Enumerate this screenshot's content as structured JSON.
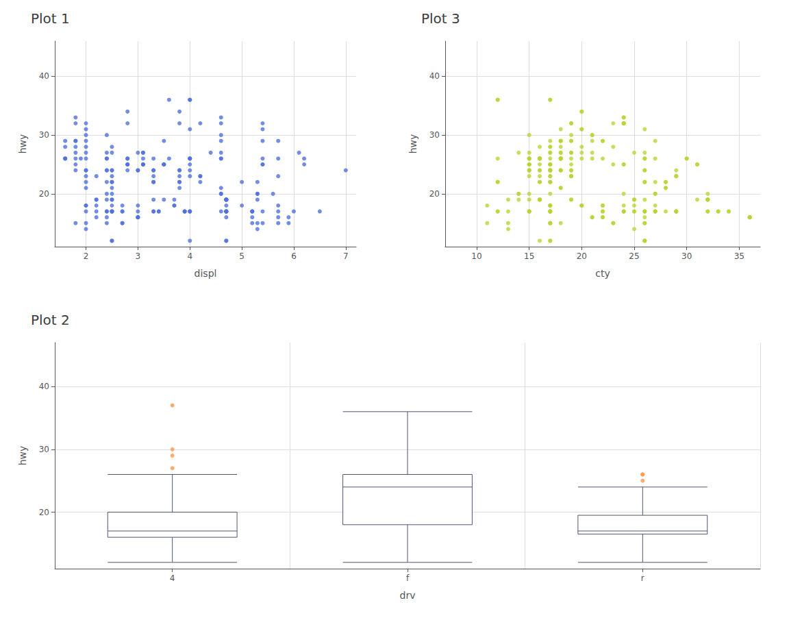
{
  "chart_data": [
    {
      "type": "scatter",
      "title": "Plot 1",
      "xlabel": "displ",
      "ylabel": "hwy",
      "x": [
        1.8,
        1.8,
        2.0,
        2.0,
        2.8,
        2.8,
        3.1,
        1.8,
        1.8,
        2.0,
        2.0,
        2.8,
        2.8,
        3.1,
        3.1,
        2.8,
        3.1,
        4.2,
        5.3,
        5.3,
        5.3,
        5.7,
        6.0,
        5.7,
        5.7,
        6.2,
        6.2,
        7.0,
        5.3,
        5.3,
        5.7,
        6.5,
        2.4,
        2.4,
        3.1,
        3.5,
        3.6,
        2.4,
        3.0,
        3.3,
        3.3,
        3.3,
        3.3,
        3.3,
        3.8,
        3.8,
        3.8,
        4.0,
        3.7,
        3.7,
        3.9,
        3.9,
        4.7,
        4.7,
        4.7,
        5.2,
        5.2,
        3.9,
        4.7,
        4.7,
        4.7,
        5.2,
        5.7,
        5.9,
        4.7,
        4.7,
        4.7,
        4.7,
        4.7,
        4.7,
        5.2,
        5.2,
        5.7,
        5.9,
        4.6,
        5.4,
        5.4,
        4.0,
        4.0,
        4.0,
        4.0,
        4.6,
        5.0,
        4.2,
        4.2,
        4.6,
        4.6,
        4.6,
        5.4,
        5.4,
        3.8,
        3.8,
        4.0,
        4.0,
        4.6,
        4.6,
        4.6,
        4.6,
        5.4,
        1.6,
        1.6,
        1.6,
        1.6,
        1.6,
        1.8,
        1.8,
        1.8,
        2.0,
        2.4,
        2.4,
        2.4,
        2.4,
        2.5,
        2.5,
        3.3,
        2.0,
        2.0,
        2.0,
        2.0,
        2.7,
        2.7,
        2.7,
        3.0,
        3.7,
        4.0,
        4.7,
        4.7,
        4.7,
        5.7,
        6.1,
        4.0,
        4.2,
        4.4,
        4.6,
        5.4,
        5.4,
        5.4,
        4.0,
        4.0,
        4.6,
        5.0,
        2.4,
        2.4,
        2.5,
        2.5,
        3.5,
        3.5,
        3.0,
        3.0,
        3.5,
        3.3,
        3.3,
        4.0,
        5.6,
        3.1,
        3.8,
        3.8,
        3.8,
        5.3,
        2.5,
        2.5,
        2.5,
        2.5,
        2.5,
        2.5,
        2.2,
        2.2,
        2.5,
        2.5,
        2.5,
        2.5,
        2.5,
        2.5,
        2.7,
        2.7,
        3.4,
        3.4,
        4.0,
        4.7,
        2.2,
        2.2,
        2.4,
        2.4,
        3.0,
        3.0,
        3.5,
        2.2,
        2.2,
        2.4,
        2.4,
        3.0,
        3.0,
        3.3,
        1.8,
        2.0,
        2.0,
        2.8,
        1.9,
        2.0,
        2.0,
        2.0,
        2.0,
        2.5,
        2.5,
        1.8,
        1.8,
        2.0,
        2.0,
        2.8,
        2.8,
        3.6
      ],
      "y": [
        29,
        29,
        31,
        30,
        26,
        26,
        27,
        26,
        25,
        28,
        27,
        25,
        25,
        25,
        25,
        24,
        25,
        23,
        20,
        15,
        20,
        17,
        17,
        26,
        23,
        26,
        25,
        24,
        19,
        14,
        15,
        17,
        27,
        30,
        26,
        29,
        26,
        24,
        24,
        22,
        22,
        24,
        24,
        17,
        22,
        21,
        23,
        23,
        19,
        18,
        17,
        17,
        19,
        19,
        12,
        17,
        15,
        17,
        17,
        12,
        17,
        16,
        18,
        15,
        16,
        18,
        17,
        19,
        19,
        17,
        17,
        17,
        16,
        16,
        17,
        15,
        17,
        26,
        25,
        26,
        24,
        21,
        22,
        23,
        22,
        20,
        33,
        32,
        32,
        29,
        32,
        34,
        36,
        36,
        29,
        26,
        27,
        30,
        31,
        26,
        26,
        28,
        26,
        29,
        28,
        27,
        24,
        24,
        24,
        22,
        19,
        20,
        17,
        12,
        19,
        18,
        14,
        15,
        18,
        18,
        15,
        17,
        16,
        18,
        17,
        19,
        19,
        17,
        29,
        27,
        31,
        32,
        27,
        26,
        26,
        25,
        25,
        17,
        17,
        20,
        18,
        26,
        26,
        27,
        28,
        25,
        25,
        24,
        27,
        25,
        26,
        23,
        26,
        20,
        27,
        24,
        24,
        22,
        22,
        24,
        24,
        17,
        22,
        21,
        23,
        23,
        19,
        18,
        17,
        17,
        19,
        19,
        12,
        17,
        15,
        17,
        17,
        12,
        17,
        16,
        18,
        15,
        16,
        18,
        17,
        19,
        19,
        17,
        17,
        17,
        16,
        16,
        17,
        15,
        17,
        26,
        25,
        26,
        24,
        21,
        22,
        23,
        22,
        20,
        33,
        32,
        32,
        29,
        32,
        34,
        36
      ],
      "xlim": [
        1.4,
        7.2
      ],
      "xticks": [
        2,
        3,
        4,
        5,
        6,
        7
      ],
      "ylim": [
        11,
        46
      ],
      "yticks": [
        20,
        30,
        40
      ],
      "grid": true
    },
    {
      "type": "scatter",
      "title": "Plot 3",
      "xlabel": "cty",
      "ylabel": "hwy",
      "x": [
        18,
        21,
        20,
        21,
        16,
        18,
        18,
        18,
        16,
        20,
        19,
        15,
        17,
        17,
        15,
        15,
        17,
        16,
        14,
        11,
        14,
        13,
        12,
        16,
        15,
        16,
        15,
        15,
        13,
        13,
        13,
        12,
        17,
        19,
        15,
        17,
        15,
        17,
        17,
        12,
        17,
        16,
        18,
        15,
        16,
        18,
        17,
        19,
        19,
        17,
        17,
        17,
        16,
        16,
        17,
        15,
        17,
        26,
        25,
        26,
        24,
        21,
        22,
        23,
        22,
        20,
        33,
        32,
        32,
        29,
        32,
        34,
        36,
        36,
        29,
        26,
        27,
        30,
        31,
        26,
        26,
        28,
        26,
        29,
        28,
        27,
        24,
        24,
        24,
        22,
        19,
        20,
        17,
        12,
        19,
        18,
        14,
        15,
        18,
        18,
        15,
        17,
        16,
        18,
        17,
        19,
        19,
        17,
        29,
        27,
        31,
        32,
        27,
        26,
        26,
        25,
        25,
        17,
        17,
        20,
        18,
        26,
        26,
        27,
        28,
        25,
        25,
        24,
        27,
        25,
        26,
        23,
        26,
        20,
        27,
        24,
        24,
        22,
        22,
        24,
        24,
        17,
        22,
        21,
        23,
        23,
        19,
        18,
        17,
        17,
        19,
        19,
        12,
        17,
        15,
        17,
        17,
        12,
        17,
        16,
        18,
        15,
        16,
        18,
        17,
        19,
        19,
        17,
        17,
        17,
        16,
        16,
        17,
        15,
        17,
        26,
        25,
        26,
        24,
        21,
        22,
        23,
        22,
        20,
        33,
        32,
        32,
        29,
        32,
        34,
        36,
        36,
        29,
        26,
        27,
        30,
        31,
        26,
        26,
        28,
        26,
        29,
        28,
        27,
        24,
        24,
        24,
        22,
        19,
        20,
        17,
        12,
        19,
        18,
        18,
        21,
        20,
        21,
        16,
        18,
        18,
        18,
        16,
        20,
        19,
        15,
        17,
        17,
        15,
        15,
        17,
        16,
        14,
        11
      ],
      "y": [
        29,
        29,
        31,
        30,
        26,
        26,
        27,
        26,
        25,
        28,
        27,
        25,
        25,
        25,
        25,
        24,
        25,
        23,
        20,
        15,
        20,
        17,
        17,
        26,
        23,
        26,
        25,
        24,
        19,
        14,
        15,
        17,
        27,
        30,
        26,
        29,
        26,
        24,
        24,
        22,
        22,
        24,
        24,
        17,
        22,
        21,
        23,
        23,
        19,
        18,
        17,
        17,
        19,
        19,
        12,
        17,
        15,
        17,
        17,
        12,
        17,
        16,
        18,
        15,
        16,
        18,
        17,
        19,
        19,
        17,
        17,
        17,
        16,
        16,
        17,
        15,
        17,
        26,
        25,
        26,
        24,
        21,
        22,
        23,
        22,
        20,
        33,
        32,
        32,
        29,
        32,
        34,
        36,
        36,
        29,
        26,
        27,
        30,
        31,
        26,
        26,
        28,
        26,
        29,
        28,
        27,
        24,
        24,
        24,
        22,
        19,
        20,
        17,
        12,
        19,
        18,
        14,
        15,
        18,
        18,
        15,
        17,
        16,
        18,
        17,
        19,
        19,
        17,
        29,
        27,
        31,
        32,
        27,
        26,
        26,
        25,
        25,
        17,
        17,
        20,
        18,
        26,
        26,
        27,
        28,
        25,
        25,
        24,
        27,
        25,
        26,
        23,
        26,
        20,
        27,
        24,
        24,
        22,
        22,
        24,
        24,
        17,
        22,
        21,
        23,
        23,
        19,
        18,
        17,
        17,
        19,
        19,
        12,
        17,
        15,
        17,
        17,
        12,
        17,
        16,
        18,
        15,
        16,
        18,
        17,
        19,
        19,
        17,
        17,
        17,
        16,
        16,
        17,
        15,
        17,
        26,
        25,
        26,
        24,
        21,
        22,
        23,
        22,
        20,
        33,
        32,
        32,
        29,
        32,
        34,
        36,
        36,
        29,
        26,
        27,
        30,
        31,
        26,
        26,
        28,
        26,
        29,
        28,
        27,
        24,
        24,
        24,
        22,
        19,
        20,
        17,
        12,
        19,
        18
      ],
      "xlim": [
        7,
        37
      ],
      "xticks": [
        10,
        15,
        20,
        25,
        30,
        35
      ],
      "ylim": [
        11,
        46
      ],
      "yticks": [
        20,
        30,
        40
      ],
      "grid": true
    },
    {
      "type": "boxplot",
      "title": "Plot 2",
      "xlabel": "drv",
      "ylabel": "hwy",
      "categories": [
        "4",
        "f",
        "r"
      ],
      "values": [
        [
          12,
          16,
          17,
          20,
          26
        ],
        [
          12,
          18,
          24,
          26,
          36
        ],
        [
          12,
          16.5,
          17,
          19.5,
          24
        ]
      ],
      "outliers": [
        [
          27,
          29,
          30,
          37
        ],
        [],
        [
          25,
          26,
          26
        ]
      ],
      "ylim": [
        11,
        47
      ],
      "yticks": [
        20,
        30,
        40
      ],
      "grid": true
    }
  ]
}
